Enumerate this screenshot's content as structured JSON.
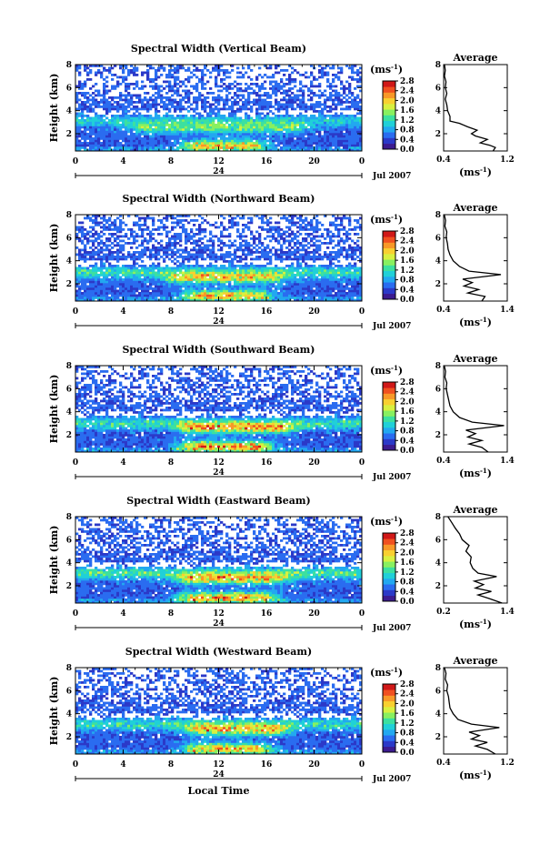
{
  "figure": {
    "xlabel": "Local Time",
    "date_label": "Jul 2007",
    "day_label": "24",
    "colorbar_unit_main": "(ms",
    "colorbar_unit_exp": "-1",
    "colorbar_unit_close": ")",
    "avg_xlabel_main": "(ms",
    "avg_xlabel_exp": "-1",
    "avg_xlabel_close": ")",
    "ylabel": "Height (km)",
    "colorbar_ticks": [
      "0.0",
      "0.4",
      "0.8",
      "1.2",
      "1.6",
      "2.0",
      "2.4",
      "2.8"
    ],
    "colormap": [
      "#3c1b90",
      "#2b39c8",
      "#2a6cf0",
      "#22a8f0",
      "#20d0d8",
      "#3ce0a0",
      "#88f060",
      "#d8f040",
      "#f8d030",
      "#f89828",
      "#f05020",
      "#d01818"
    ]
  },
  "chart_data": [
    {
      "type": "heatmap",
      "title": "Spectral Width (Vertical Beam)",
      "x_ticks": [
        "0",
        "4",
        "8",
        "12",
        "16",
        "20",
        "0"
      ],
      "y_ticks": [
        "2",
        "4",
        "6",
        "8"
      ],
      "xlim": [
        0,
        24
      ],
      "ylim": [
        0.5,
        8.0
      ],
      "clim": [
        0.0,
        2.8
      ],
      "inset": {
        "title": "Average",
        "xlim": [
          0.4,
          1.2
        ],
        "x_ticks": [
          "0.4",
          "1.2"
        ],
        "y_ticks": [
          "2",
          "4",
          "6",
          "8"
        ],
        "ylim": [
          0.5,
          8.0
        ],
        "profile": [
          [
            1.02,
            0.5
          ],
          [
            1.05,
            0.8
          ],
          [
            0.98,
            1.0
          ],
          [
            0.86,
            1.2
          ],
          [
            0.95,
            1.5
          ],
          [
            0.8,
            1.8
          ],
          [
            0.75,
            2.0
          ],
          [
            0.82,
            2.3
          ],
          [
            0.7,
            2.6
          ],
          [
            0.6,
            2.9
          ],
          [
            0.48,
            3.1
          ],
          [
            0.48,
            3.5
          ],
          [
            0.45,
            4.0
          ],
          [
            0.44,
            4.5
          ],
          [
            0.42,
            5.0
          ],
          [
            0.44,
            5.5
          ],
          [
            0.42,
            6.0
          ],
          [
            0.43,
            6.5
          ],
          [
            0.41,
            7.0
          ],
          [
            0.42,
            7.5
          ],
          [
            0.41,
            8.0
          ]
        ]
      },
      "bands": [
        {
          "y": 1.0,
          "amp": 1.6,
          "t0": 10.5,
          "t1": 14.5
        },
        {
          "y": 2.5,
          "amp": 0.9,
          "t0": 6.0,
          "t1": 18.0
        },
        {
          "y": 3.1,
          "amp": 0.6,
          "t0": 0.0,
          "t1": 24.0
        }
      ]
    },
    {
      "type": "heatmap",
      "title": "Spectral Width (Northward Beam)",
      "x_ticks": [
        "0",
        "4",
        "8",
        "12",
        "16",
        "20",
        "0"
      ],
      "y_ticks": [
        "2",
        "4",
        "6",
        "8"
      ],
      "xlim": [
        0,
        24
      ],
      "ylim": [
        0.5,
        8.0
      ],
      "clim": [
        0.0,
        2.8
      ],
      "inset": {
        "title": "Average",
        "xlim": [
          0.4,
          1.4
        ],
        "x_ticks": [
          "0.4",
          "1.4"
        ],
        "y_ticks": [
          "2",
          "4",
          "6",
          "8"
        ],
        "ylim": [
          0.5,
          8.0
        ],
        "profile": [
          [
            1.0,
            0.5
          ],
          [
            1.05,
            0.9
          ],
          [
            0.78,
            1.2
          ],
          [
            0.95,
            1.5
          ],
          [
            0.72,
            1.8
          ],
          [
            0.85,
            2.1
          ],
          [
            0.7,
            2.4
          ],
          [
            1.3,
            2.8
          ],
          [
            0.8,
            3.1
          ],
          [
            0.65,
            3.5
          ],
          [
            0.55,
            4.0
          ],
          [
            0.5,
            4.5
          ],
          [
            0.47,
            5.0
          ],
          [
            0.46,
            5.5
          ],
          [
            0.44,
            6.0
          ],
          [
            0.45,
            6.5
          ],
          [
            0.42,
            7.0
          ],
          [
            0.43,
            7.5
          ],
          [
            0.41,
            8.0
          ]
        ]
      },
      "bands": [
        {
          "y": 1.0,
          "amp": 1.6,
          "t0": 10.5,
          "t1": 15.0
        },
        {
          "y": 2.5,
          "amp": 1.3,
          "t0": 9.0,
          "t1": 16.0
        },
        {
          "y": 3.0,
          "amp": 0.8,
          "t0": 0.0,
          "t1": 24.0
        }
      ]
    },
    {
      "type": "heatmap",
      "title": "Spectral Width (Southward Beam)",
      "x_ticks": [
        "0",
        "4",
        "8",
        "12",
        "16",
        "20",
        "0"
      ],
      "y_ticks": [
        "2",
        "4",
        "6",
        "8"
      ],
      "xlim": [
        0,
        24
      ],
      "ylim": [
        0.5,
        8.0
      ],
      "clim": [
        0.0,
        2.8
      ],
      "inset": {
        "title": "Average",
        "xlim": [
          0.4,
          1.4
        ],
        "x_ticks": [
          "0.4",
          "1.4"
        ],
        "y_ticks": [
          "2",
          "4",
          "6",
          "8"
        ],
        "ylim": [
          0.5,
          8.0
        ],
        "profile": [
          [
            1.1,
            0.5
          ],
          [
            1.0,
            0.9
          ],
          [
            0.8,
            1.2
          ],
          [
            1.0,
            1.5
          ],
          [
            0.78,
            1.8
          ],
          [
            0.9,
            2.1
          ],
          [
            0.75,
            2.4
          ],
          [
            1.35,
            2.8
          ],
          [
            0.85,
            3.1
          ],
          [
            0.65,
            3.5
          ],
          [
            0.55,
            4.0
          ],
          [
            0.5,
            4.5
          ],
          [
            0.48,
            5.0
          ],
          [
            0.46,
            5.5
          ],
          [
            0.44,
            6.0
          ],
          [
            0.45,
            6.5
          ],
          [
            0.42,
            7.0
          ],
          [
            0.43,
            7.5
          ],
          [
            0.41,
            8.0
          ]
        ]
      },
      "bands": [
        {
          "y": 1.0,
          "amp": 1.8,
          "t0": 10.0,
          "t1": 15.0
        },
        {
          "y": 2.6,
          "amp": 1.4,
          "t0": 10.0,
          "t1": 17.0
        },
        {
          "y": 3.0,
          "amp": 0.8,
          "t0": 0.0,
          "t1": 24.0
        }
      ]
    },
    {
      "type": "heatmap",
      "title": "Spectral Width (Eastward Beam)",
      "x_ticks": [
        "0",
        "4",
        "8",
        "12",
        "16",
        "20",
        "0"
      ],
      "y_ticks": [
        "2",
        "4",
        "6",
        "8"
      ],
      "xlim": [
        0,
        24
      ],
      "ylim": [
        0.5,
        8.0
      ],
      "clim": [
        0.0,
        2.8
      ],
      "inset": {
        "title": "Average",
        "xlim": [
          0.2,
          1.4
        ],
        "x_ticks": [
          "0.2",
          "1.4"
        ],
        "y_ticks": [
          "2",
          "4",
          "6",
          "8"
        ],
        "ylim": [
          0.5,
          8.0
        ],
        "profile": [
          [
            1.3,
            0.5
          ],
          [
            1.05,
            0.9
          ],
          [
            0.85,
            1.2
          ],
          [
            1.1,
            1.5
          ],
          [
            0.8,
            1.8
          ],
          [
            0.95,
            2.1
          ],
          [
            0.78,
            2.4
          ],
          [
            1.2,
            2.8
          ],
          [
            0.85,
            3.1
          ],
          [
            0.75,
            3.5
          ],
          [
            0.7,
            4.0
          ],
          [
            0.72,
            4.5
          ],
          [
            0.62,
            5.0
          ],
          [
            0.68,
            5.5
          ],
          [
            0.55,
            6.0
          ],
          [
            0.5,
            6.5
          ],
          [
            0.42,
            7.0
          ],
          [
            0.35,
            7.5
          ],
          [
            0.28,
            8.0
          ]
        ]
      },
      "bands": [
        {
          "y": 1.0,
          "amp": 1.7,
          "t0": 10.0,
          "t1": 15.5
        },
        {
          "y": 2.6,
          "amp": 1.4,
          "t0": 10.0,
          "t1": 16.5
        },
        {
          "y": 3.1,
          "amp": 0.9,
          "t0": 0.0,
          "t1": 24.0
        }
      ]
    },
    {
      "type": "heatmap",
      "title": "Spectral Width (Westward Beam)",
      "x_ticks": [
        "0",
        "4",
        "8",
        "12",
        "16",
        "20",
        "0"
      ],
      "y_ticks": [
        "2",
        "4",
        "6",
        "8"
      ],
      "xlim": [
        0,
        24
      ],
      "ylim": [
        0.5,
        8.0
      ],
      "clim": [
        0.0,
        2.8
      ],
      "inset": {
        "title": "Average",
        "xlim": [
          0.4,
          1.2
        ],
        "x_ticks": [
          "0.4",
          "1.2"
        ],
        "y_ticks": [
          "2",
          "4",
          "6",
          "8"
        ],
        "ylim": [
          0.5,
          8.0
        ],
        "profile": [
          [
            1.05,
            0.5
          ],
          [
            0.95,
            0.9
          ],
          [
            0.8,
            1.2
          ],
          [
            0.95,
            1.5
          ],
          [
            0.75,
            1.8
          ],
          [
            0.85,
            2.1
          ],
          [
            0.72,
            2.4
          ],
          [
            1.1,
            2.8
          ],
          [
            0.75,
            3.1
          ],
          [
            0.58,
            3.5
          ],
          [
            0.52,
            4.0
          ],
          [
            0.48,
            4.5
          ],
          [
            0.47,
            5.0
          ],
          [
            0.46,
            5.5
          ],
          [
            0.44,
            6.0
          ],
          [
            0.45,
            6.5
          ],
          [
            0.42,
            7.0
          ],
          [
            0.43,
            7.5
          ],
          [
            0.41,
            8.0
          ]
        ]
      },
      "bands": [
        {
          "y": 1.0,
          "amp": 1.6,
          "t0": 10.5,
          "t1": 15.0
        },
        {
          "y": 2.6,
          "amp": 1.4,
          "t0": 10.5,
          "t1": 16.5
        },
        {
          "y": 3.1,
          "amp": 0.8,
          "t0": 0.0,
          "t1": 24.0
        }
      ]
    }
  ]
}
